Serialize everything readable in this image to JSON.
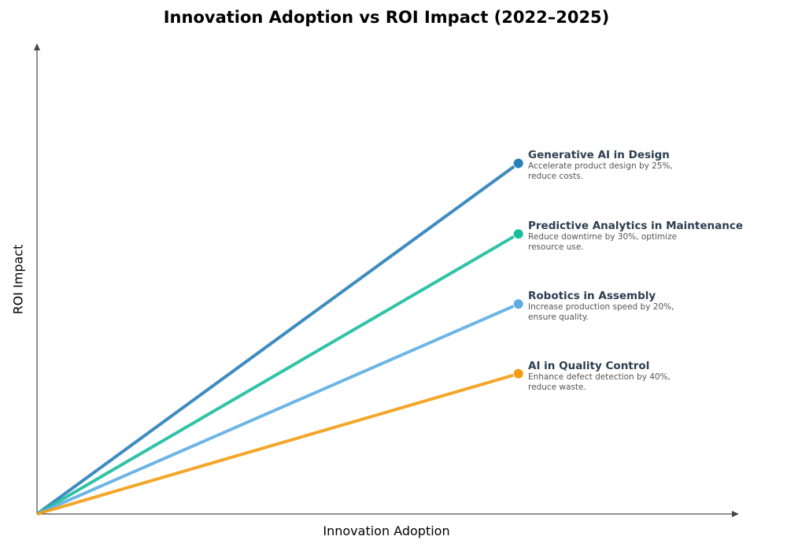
{
  "chart_data": {
    "type": "line",
    "title": "Innovation Adoption vs ROI Impact (2022–2025)",
    "xlabel": "Innovation Adoption",
    "ylabel": "ROI Impact",
    "xlim": [
      0,
      10
    ],
    "ylim": [
      0,
      10
    ],
    "grid": false,
    "ticks": false,
    "series": [
      {
        "name": "Generative AI in Design",
        "description": "Accelerate product design by 25%, reduce costs.",
        "color": "#2980b9",
        "x": [
          0,
          6.85
        ],
        "y": [
          0,
          7.45
        ]
      },
      {
        "name": "Predictive Analytics in Maintenance",
        "description": "Reduce downtime by 30%, optimize resource use.",
        "color": "#1abc9c",
        "x": [
          0,
          6.85
        ],
        "y": [
          0,
          5.95
        ]
      },
      {
        "name": "Robotics in Assembly",
        "description": "Increase production speed by 20%, ensure quality.",
        "color": "#5dade2",
        "x": [
          0,
          6.85
        ],
        "y": [
          0,
          4.46
        ]
      },
      {
        "name": "AI in Quality Control",
        "description": "Enhance defect detection by 40%, reduce waste.",
        "color": "#f39c12",
        "x": [
          0,
          6.85
        ],
        "y": [
          0,
          2.98
        ]
      }
    ]
  }
}
